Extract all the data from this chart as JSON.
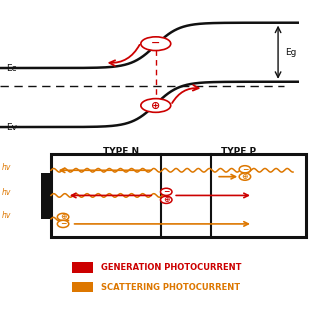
{
  "bg_color": "#ffffff",
  "red_color": "#cc0000",
  "orange_color": "#dd7700",
  "black_color": "#111111",
  "Ec_label": "Ec",
  "Ev_label": "Ev",
  "Eg_label": "Eg",
  "typeN_label": "TYPE N",
  "typeP_label": "TYPE P",
  "hv_label": "hv",
  "gen_label": "GENERATION PHOTOCURRENT",
  "scat_label": "SCATTERING PHOTOCURRENT",
  "fig_width": 3.25,
  "fig_height": 3.12,
  "dpi": 100
}
